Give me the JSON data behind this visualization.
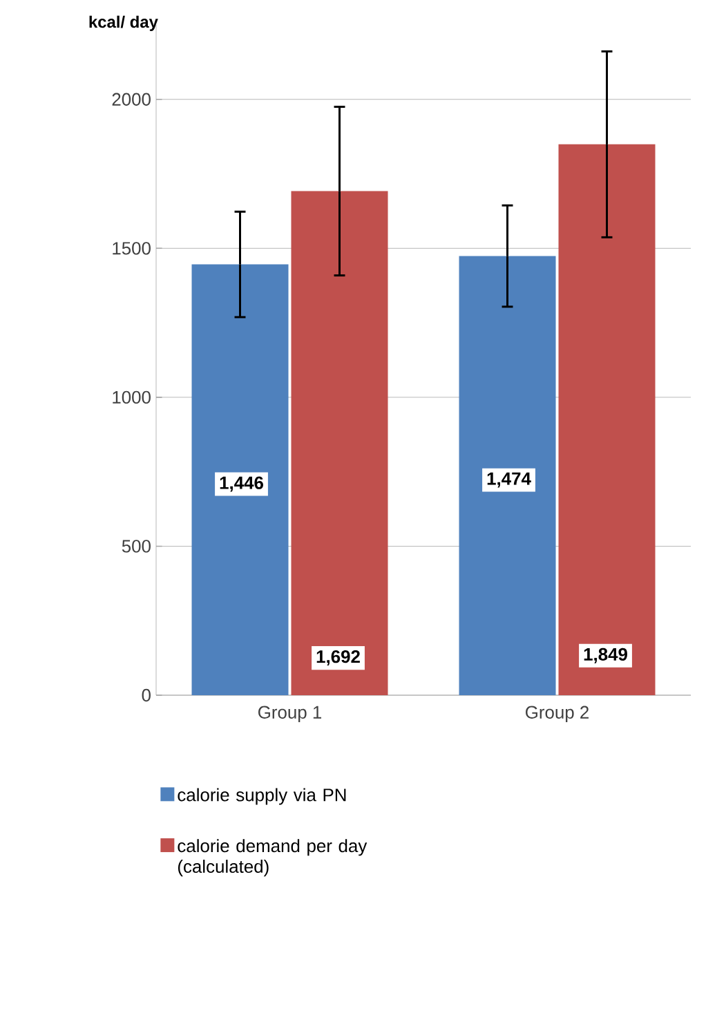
{
  "chart_data": {
    "type": "bar",
    "ylabel": "kcal/ day",
    "categories": [
      "Group 1",
      "Group 2"
    ],
    "series": [
      {
        "name": "calorie supply via PN",
        "color": "#4f81bd",
        "values": [
          1446,
          1474
        ],
        "errors": [
          177,
          170
        ],
        "value_labels": [
          "1,446",
          "1,474"
        ]
      },
      {
        "name": "calorie demand per day (calculated)",
        "color": "#c0504d",
        "values": [
          1692,
          1849
        ],
        "errors": [
          283,
          312
        ],
        "value_labels": [
          "1,692",
          "1,849"
        ]
      }
    ],
    "ylim": [
      0,
      2250
    ],
    "yticks": [
      0,
      500,
      1000,
      1500,
      2000
    ],
    "grid": "y",
    "legend": "bottom"
  }
}
